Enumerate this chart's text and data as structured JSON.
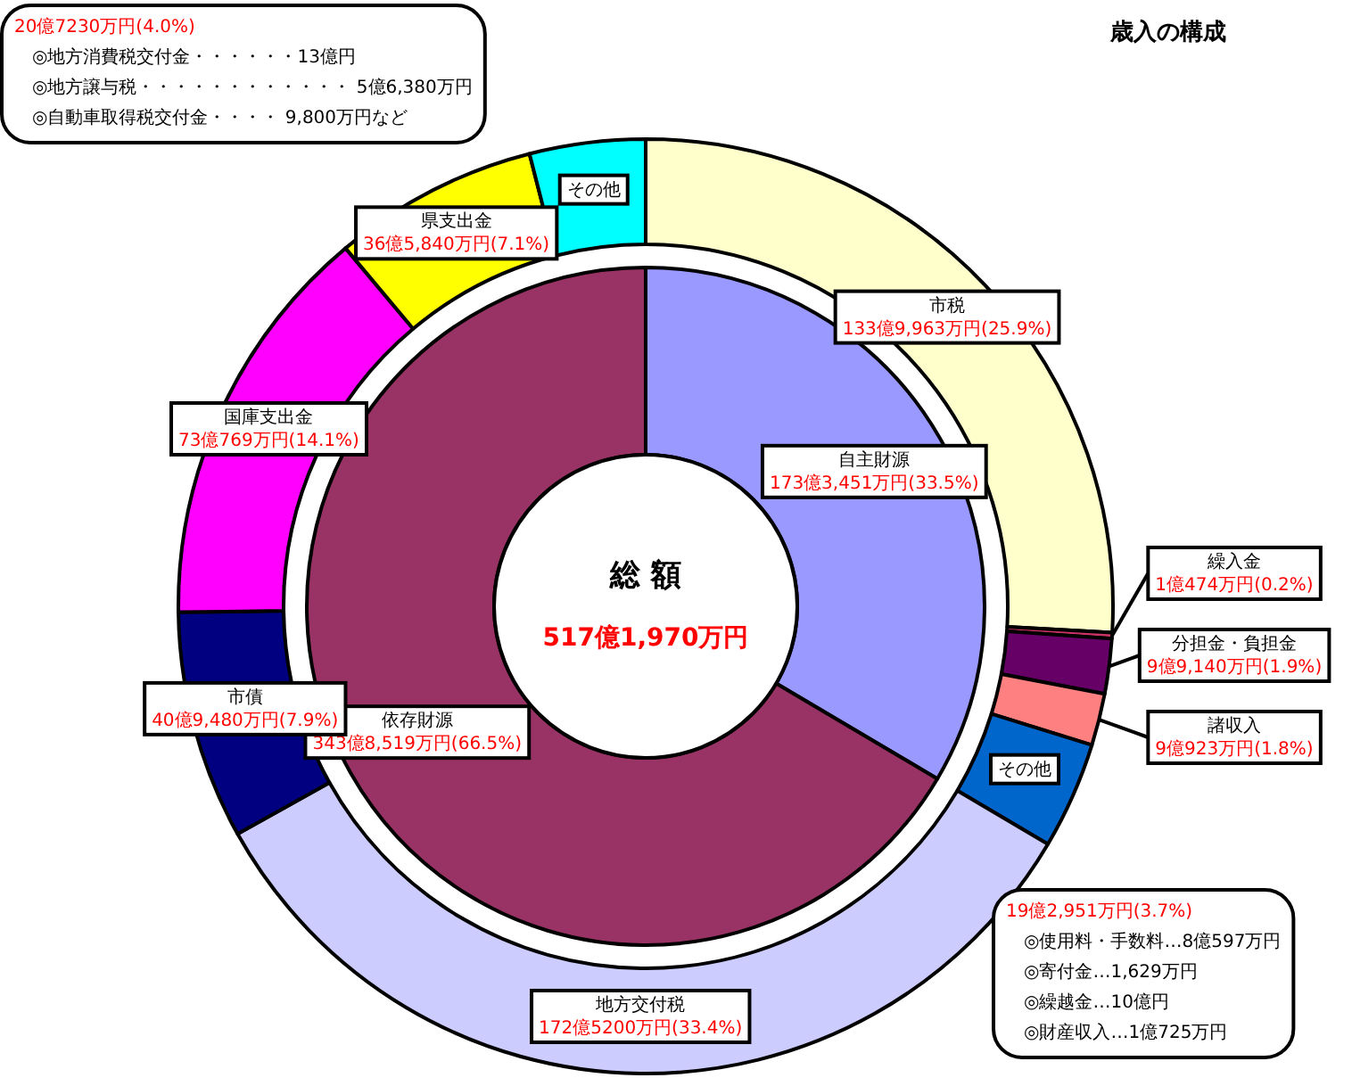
{
  "chart_data": [
    {
      "type": "donut",
      "title": "歳入の構成",
      "categories": [
        "自主財源",
        "依存財源"
      ],
      "values": [
        33.5,
        66.5
      ],
      "colors": [
        "#9999ff",
        "#993366"
      ],
      "value_labels": [
        "173億3,451万円(33.5%)",
        "343億8,519万円(66.5%)"
      ],
      "annotations": [
        "総 額",
        "517億1,970万円",
        "20億7230万円(4.0%)\n◎地方消費税交付金・・・・・・13億円\n◎地方譲与税・・・・・・・・・・・・ 5億6,380万円\n◎自動車取得税交付金・・・・ 9,800万円など",
        "19億2,951万円(3.7%)\n◎使用料・手数料…8億597万円\n◎寄付金…1,629万円\n◎繰越金…10億円\n◎財産収入…1億725万円"
      ]
    },
    {
      "type": "donut",
      "categories": [
        "市税",
        "繰入金",
        "分担金・負担金",
        "諸収入",
        "その他",
        "地方交付税",
        "市債",
        "国庫支出金",
        "県支出金",
        "その他"
      ],
      "values": [
        25.9,
        0.2,
        1.9,
        1.8,
        3.7,
        33.4,
        7.9,
        14.1,
        7.1,
        4.0
      ],
      "colors": [
        "#ffffcc",
        "#cc3366",
        "#660066",
        "#ff8080",
        "#0066cc",
        "#ccccff",
        "#000080",
        "#ff00ff",
        "#ffff00",
        "#00ffff"
      ],
      "value_labels": [
        "133億9,963万円(25.9%)",
        "1億474万円(0.2%)",
        "9億9,140万円(1.9%)",
        "9億923万円(1.8%)",
        null,
        "172億5200万円(33.4%)",
        "40億9,480万円(7.9%)",
        "73億769万円(14.1%)",
        "36億5,840万円(7.1%)",
        null
      ]
    }
  ]
}
